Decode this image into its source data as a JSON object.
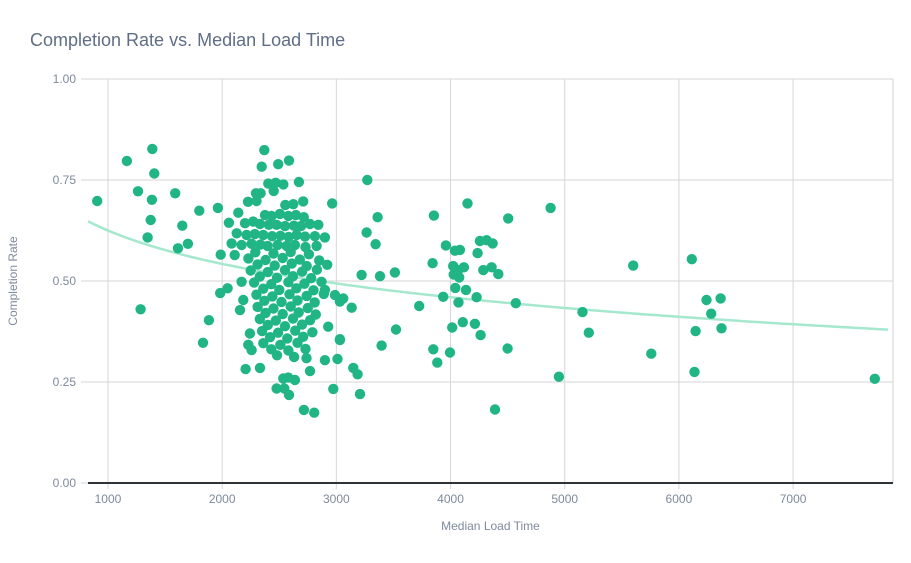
{
  "title": "Completion Rate vs. Median Load Time",
  "chart_data": {
    "type": "scatter",
    "title": "Completion Rate vs. Median Load Time",
    "xlabel": "Median Load Time",
    "ylabel": "Completion Rate",
    "xlim": [
      825,
      7875
    ],
    "ylim": [
      0,
      1
    ],
    "x_ticks": [
      1000,
      2000,
      3000,
      4000,
      5000,
      6000,
      7000
    ],
    "x_tick_labels": [
      "1000",
      "2000",
      "3000",
      "4000",
      "5000",
      "6000",
      "7000"
    ],
    "y_ticks": [
      0,
      0.25,
      0.5,
      0.75,
      1
    ],
    "y_tick_labels": [
      "0.00",
      "0.25",
      "0.50",
      "0.75",
      "1.00"
    ],
    "grid": true,
    "legend_position": "none",
    "point_color": "#21b586",
    "trend_color": "#a5e8cd",
    "gridline_color": "#d6d6d6",
    "baseline_color": "#2e3338",
    "trend": {
      "model": "logarithmic",
      "a": 1.4484,
      "b": -0.1192
    },
    "points": [
      [
        906,
        0.698
      ],
      [
        1166,
        0.797
      ],
      [
        1263,
        0.722
      ],
      [
        1286,
        0.43
      ],
      [
        1347,
        0.608
      ],
      [
        1374,
        0.651
      ],
      [
        1385,
        0.701
      ],
      [
        1388,
        0.827
      ],
      [
        1406,
        0.766
      ],
      [
        1589,
        0.717
      ],
      [
        1613,
        0.581
      ],
      [
        1651,
        0.637
      ],
      [
        1700,
        0.592
      ],
      [
        1800,
        0.674
      ],
      [
        1832,
        0.347
      ],
      [
        1884,
        0.403
      ],
      [
        1963,
        0.681
      ],
      [
        1983,
        0.47
      ],
      [
        1987,
        0.565
      ],
      [
        2059,
        0.644
      ],
      [
        2083,
        0.593
      ],
      [
        2110,
        0.564
      ],
      [
        2127,
        0.618
      ],
      [
        2141,
        0.669
      ],
      [
        2170,
        0.589
      ],
      [
        2200,
        0.643
      ],
      [
        2214,
        0.614
      ],
      [
        2226,
        0.696
      ],
      [
        2258,
        0.592
      ],
      [
        2272,
        0.647
      ],
      [
        2287,
        0.616
      ],
      [
        2296,
        0.717
      ],
      [
        2301,
        0.698
      ],
      [
        2331,
        0.641
      ],
      [
        2335,
        0.59
      ],
      [
        2337,
        0.717
      ],
      [
        2346,
        0.783
      ],
      [
        2360,
        0.614
      ],
      [
        2369,
        0.824
      ],
      [
        2375,
        0.663
      ],
      [
        2404,
        0.741
      ],
      [
        2408,
        0.639
      ],
      [
        2398,
        0.587
      ],
      [
        2433,
        0.661
      ],
      [
        2437,
        0.611
      ],
      [
        2451,
        0.723
      ],
      [
        2468,
        0.743
      ],
      [
        2477,
        0.639
      ],
      [
        2486,
        0.589
      ],
      [
        2491,
        0.789
      ],
      [
        2506,
        0.666
      ],
      [
        2510,
        0.612
      ],
      [
        2535,
        0.739
      ],
      [
        2550,
        0.636
      ],
      [
        2553,
        0.688
      ],
      [
        2565,
        0.587
      ],
      [
        2579,
        0.661
      ],
      [
        2583,
        0.609
      ],
      [
        2585,
        0.798
      ],
      [
        2623,
        0.69
      ],
      [
        2628,
        0.637
      ],
      [
        2637,
        0.589
      ],
      [
        2646,
        0.663
      ],
      [
        2652,
        0.614
      ],
      [
        2672,
        0.745
      ],
      [
        2690,
        0.636
      ],
      [
        2710,
        0.697
      ],
      [
        2715,
        0.658
      ],
      [
        2725,
        0.61
      ],
      [
        2730,
        0.584
      ],
      [
        2769,
        0.641
      ],
      [
        2812,
        0.611
      ],
      [
        2827,
        0.587
      ],
      [
        2842,
        0.639
      ],
      [
        2900,
        0.608
      ],
      [
        2964,
        0.692
      ],
      [
        2048,
        0.482
      ],
      [
        2156,
        0.428
      ],
      [
        2170,
        0.498
      ],
      [
        2185,
        0.453
      ],
      [
        2229,
        0.342
      ],
      [
        2243,
        0.37
      ],
      [
        2258,
        0.329
      ],
      [
        2290,
        0.571
      ],
      [
        2450,
        0.568
      ],
      [
        2600,
        0.572
      ],
      [
        2760,
        0.566
      ],
      [
        2230,
        0.556
      ],
      [
        2380,
        0.552
      ],
      [
        2530,
        0.557
      ],
      [
        2680,
        0.553
      ],
      [
        2850,
        0.551
      ],
      [
        2310,
        0.541
      ],
      [
        2460,
        0.538
      ],
      [
        2610,
        0.543
      ],
      [
        2740,
        0.537
      ],
      [
        2920,
        0.54
      ],
      [
        2250,
        0.526
      ],
      [
        2400,
        0.522
      ],
      [
        2550,
        0.527
      ],
      [
        2700,
        0.523
      ],
      [
        2830,
        0.528
      ],
      [
        2330,
        0.511
      ],
      [
        2480,
        0.508
      ],
      [
        2620,
        0.512
      ],
      [
        2780,
        0.507
      ],
      [
        2280,
        0.496
      ],
      [
        2430,
        0.492
      ],
      [
        2580,
        0.497
      ],
      [
        2720,
        0.493
      ],
      [
        2870,
        0.498
      ],
      [
        2360,
        0.481
      ],
      [
        2500,
        0.478
      ],
      [
        2650,
        0.482
      ],
      [
        2800,
        0.477
      ],
      [
        2300,
        0.466
      ],
      [
        2440,
        0.462
      ],
      [
        2590,
        0.467
      ],
      [
        2740,
        0.463
      ],
      [
        2890,
        0.468
      ],
      [
        2370,
        0.451
      ],
      [
        2520,
        0.448
      ],
      [
        2660,
        0.452
      ],
      [
        2810,
        0.447
      ],
      [
        2310,
        0.436
      ],
      [
        2450,
        0.432
      ],
      [
        2600,
        0.437
      ],
      [
        2750,
        0.433
      ],
      [
        2380,
        0.421
      ],
      [
        2530,
        0.418
      ],
      [
        2670,
        0.422
      ],
      [
        2820,
        0.417
      ],
      [
        2330,
        0.406
      ],
      [
        2470,
        0.402
      ],
      [
        2620,
        0.407
      ],
      [
        2770,
        0.403
      ],
      [
        2400,
        0.391
      ],
      [
        2550,
        0.388
      ],
      [
        2700,
        0.392
      ],
      [
        2350,
        0.376
      ],
      [
        2490,
        0.372
      ],
      [
        2640,
        0.377
      ],
      [
        2790,
        0.373
      ],
      [
        2420,
        0.361
      ],
      [
        2570,
        0.358
      ],
      [
        2710,
        0.362
      ],
      [
        2360,
        0.346
      ],
      [
        2510,
        0.342
      ],
      [
        2660,
        0.347
      ],
      [
        2430,
        0.331
      ],
      [
        2580,
        0.328
      ],
      [
        2730,
        0.332
      ],
      [
        2480,
        0.316
      ],
      [
        2630,
        0.312
      ],
      [
        2739,
        0.309
      ],
      [
        2900,
        0.478
      ],
      [
        2900,
        0.304
      ],
      [
        2929,
        0.387
      ],
      [
        2988,
        0.465
      ],
      [
        3031,
        0.449
      ],
      [
        3031,
        0.354
      ],
      [
        2205,
        0.282
      ],
      [
        2331,
        0.285
      ],
      [
        2477,
        0.234
      ],
      [
        2535,
        0.259
      ],
      [
        2544,
        0.234
      ],
      [
        2579,
        0.261
      ],
      [
        2585,
        0.218
      ],
      [
        2637,
        0.255
      ],
      [
        2716,
        0.181
      ],
      [
        2769,
        0.277
      ],
      [
        2806,
        0.174
      ],
      [
        2973,
        0.233
      ],
      [
        3148,
        0.285
      ],
      [
        3010,
        0.307
      ],
      [
        3031,
        0.356
      ],
      [
        3060,
        0.457
      ],
      [
        3134,
        0.434
      ],
      [
        3186,
        0.269
      ],
      [
        3207,
        0.22
      ],
      [
        3221,
        0.515
      ],
      [
        3265,
        0.62
      ],
      [
        3271,
        0.75
      ],
      [
        3344,
        0.591
      ],
      [
        3361,
        0.658
      ],
      [
        3382,
        0.512
      ],
      [
        3396,
        0.34
      ],
      [
        3513,
        0.521
      ],
      [
        3522,
        0.38
      ],
      [
        3726,
        0.438
      ],
      [
        3843,
        0.544
      ],
      [
        3849,
        0.331
      ],
      [
        3854,
        0.662
      ],
      [
        3884,
        0.298
      ],
      [
        3936,
        0.461
      ],
      [
        3959,
        0.588
      ],
      [
        3995,
        0.323
      ],
      [
        4015,
        0.385
      ],
      [
        4023,
        0.537
      ],
      [
        4028,
        0.516
      ],
      [
        4038,
        0.575
      ],
      [
        4042,
        0.483
      ],
      [
        4067,
        0.527
      ],
      [
        4070,
        0.447
      ],
      [
        4076,
        0.509
      ],
      [
        4082,
        0.577
      ],
      [
        4107,
        0.398
      ],
      [
        4117,
        0.534
      ],
      [
        4135,
        0.478
      ],
      [
        4149,
        0.692
      ],
      [
        4213,
        0.394
      ],
      [
        4228,
        0.46
      ],
      [
        4237,
        0.569
      ],
      [
        4257,
        0.599
      ],
      [
        4263,
        0.366
      ],
      [
        4287,
        0.527
      ],
      [
        4316,
        0.601
      ],
      [
        4360,
        0.534
      ],
      [
        4368,
        0.593
      ],
      [
        4389,
        0.182
      ],
      [
        4418,
        0.517
      ],
      [
        4500,
        0.333
      ],
      [
        4505,
        0.655
      ],
      [
        4572,
        0.445
      ],
      [
        4876,
        0.681
      ],
      [
        4949,
        0.263
      ],
      [
        5156,
        0.423
      ],
      [
        5211,
        0.372
      ],
      [
        5600,
        0.538
      ],
      [
        5758,
        0.32
      ],
      [
        6113,
        0.554
      ],
      [
        6137,
        0.275
      ],
      [
        6146,
        0.376
      ],
      [
        6242,
        0.453
      ],
      [
        6283,
        0.419
      ],
      [
        6365,
        0.457
      ],
      [
        6373,
        0.383
      ],
      [
        7716,
        0.258
      ]
    ]
  }
}
